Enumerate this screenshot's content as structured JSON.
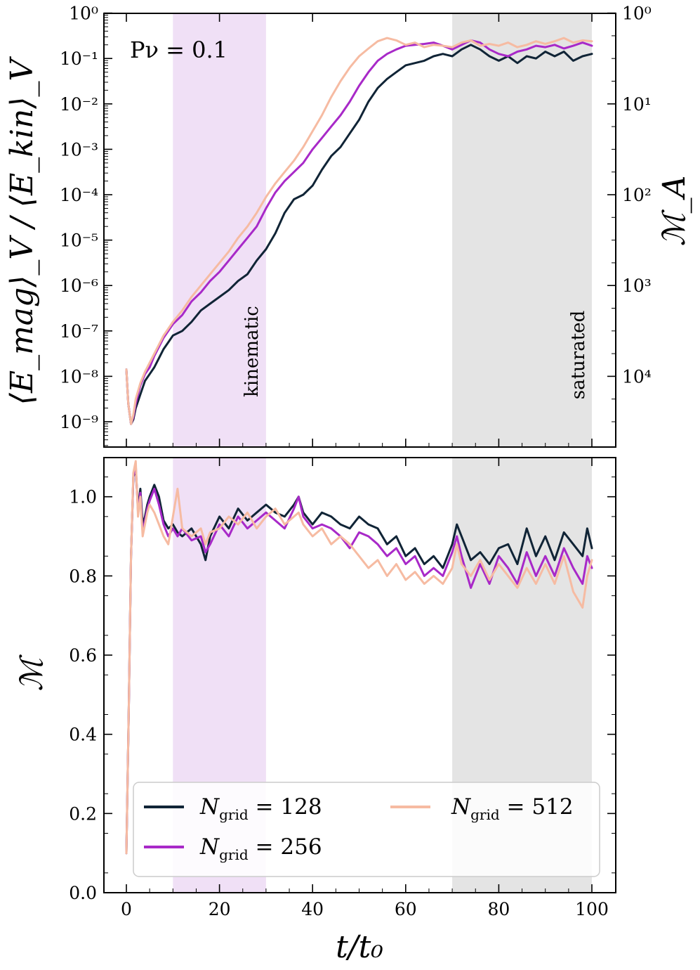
{
  "chart_data": [
    {
      "type": "line",
      "panel": "top",
      "title": "",
      "annotation": "Pν = 0.1",
      "ylabel": "⟨E_mag⟩_V / ⟨E_kin⟩_V",
      "ylabel_right": "ℳ_A",
      "yscale": "log",
      "ylim": [
        1e-10,
        1
      ],
      "xlim": [
        -5,
        105
      ],
      "y_ticks": [
        {
          "exp": -9,
          "label": "10⁻⁹"
        },
        {
          "exp": -8,
          "label": "10⁻⁸"
        },
        {
          "exp": -7,
          "label": "10⁻⁷"
        },
        {
          "exp": -6,
          "label": "10⁻⁶"
        },
        {
          "exp": -5,
          "label": "10⁻⁵"
        },
        {
          "exp": -4,
          "label": "10⁻⁴"
        },
        {
          "exp": -3,
          "label": "10⁻³"
        },
        {
          "exp": -2,
          "label": "10⁻²"
        },
        {
          "exp": -1,
          "label": "10⁻¹"
        },
        {
          "exp": 0,
          "label": "10⁰"
        }
      ],
      "y_ticks_right": [
        {
          "exp": 0,
          "label": "10⁰"
        },
        {
          "exp": -2,
          "label": "10¹"
        },
        {
          "exp": -4,
          "label": "10²"
        },
        {
          "exp": -6,
          "label": "10³"
        },
        {
          "exp": -8,
          "label": "10⁴"
        }
      ],
      "regions": [
        {
          "name": "kinematic",
          "x0": 10,
          "x1": 30,
          "color": "#f0e0f6",
          "label_color": "#b02fcc"
        },
        {
          "name": "saturated",
          "x0": 70,
          "x1": 100,
          "color": "#e4e4e4",
          "label_color": "#111111"
        }
      ],
      "series": [
        {
          "name": "128",
          "color": "#102436",
          "x": [
            0,
            0.4,
            1,
            1.5,
            2,
            3,
            4,
            5,
            6,
            7,
            8,
            9,
            10,
            12,
            14,
            16,
            18,
            20,
            22,
            24,
            26,
            28,
            30,
            32,
            34,
            36,
            38,
            40,
            42,
            44,
            46,
            48,
            50,
            52,
            54,
            56,
            58,
            60,
            62,
            64,
            66,
            68,
            70,
            72,
            74,
            76,
            78,
            80,
            82,
            84,
            86,
            88,
            90,
            92,
            94,
            96,
            98,
            100
          ],
          "y": [
            -7.85,
            -8.6,
            -9.05,
            -8.95,
            -8.7,
            -8.4,
            -8.1,
            -7.95,
            -7.8,
            -7.6,
            -7.4,
            -7.25,
            -7.1,
            -7.0,
            -6.8,
            -6.55,
            -6.4,
            -6.25,
            -6.1,
            -5.9,
            -5.75,
            -5.45,
            -5.2,
            -4.85,
            -4.4,
            -4.1,
            -4.0,
            -3.8,
            -3.45,
            -3.15,
            -2.95,
            -2.65,
            -2.35,
            -1.95,
            -1.65,
            -1.45,
            -1.3,
            -1.15,
            -1.1,
            -1.05,
            -0.95,
            -0.9,
            -0.95,
            -0.8,
            -0.7,
            -0.8,
            -0.95,
            -1.05,
            -0.95,
            -1.1,
            -0.95,
            -1.0,
            -0.85,
            -0.95,
            -0.85,
            -1.05,
            -0.95,
            -0.9
          ]
        },
        {
          "name": "256",
          "color": "#a829c8",
          "x": [
            0,
            0.4,
            1,
            1.5,
            2,
            3,
            4,
            5,
            6,
            7,
            8,
            9,
            10,
            12,
            14,
            16,
            18,
            20,
            22,
            24,
            26,
            28,
            30,
            32,
            34,
            36,
            38,
            40,
            42,
            44,
            46,
            48,
            50,
            52,
            54,
            56,
            58,
            60,
            62,
            64,
            66,
            68,
            70,
            72,
            74,
            76,
            78,
            80,
            82,
            84,
            86,
            88,
            90,
            92,
            94,
            96,
            98,
            100
          ],
          "y": [
            -7.85,
            -8.6,
            -9.05,
            -8.9,
            -8.6,
            -8.2,
            -7.95,
            -7.8,
            -7.55,
            -7.35,
            -7.15,
            -7.0,
            -6.85,
            -6.65,
            -6.35,
            -6.15,
            -5.9,
            -5.7,
            -5.45,
            -5.2,
            -4.95,
            -4.7,
            -4.3,
            -3.95,
            -3.7,
            -3.5,
            -3.3,
            -3.0,
            -2.75,
            -2.5,
            -2.25,
            -1.95,
            -1.6,
            -1.3,
            -1.05,
            -0.9,
            -0.8,
            -0.72,
            -0.7,
            -0.68,
            -0.65,
            -0.72,
            -0.8,
            -0.7,
            -0.6,
            -0.65,
            -0.8,
            -0.9,
            -0.95,
            -0.85,
            -0.8,
            -0.72,
            -0.75,
            -0.7,
            -0.78,
            -0.72,
            -0.65,
            -0.72
          ]
        },
        {
          "name": "512",
          "color": "#f6bba2",
          "x": [
            0,
            0.4,
            1,
            1.5,
            2,
            3,
            4,
            5,
            6,
            7,
            8,
            9,
            10,
            12,
            14,
            16,
            18,
            20,
            22,
            24,
            26,
            28,
            30,
            32,
            34,
            36,
            38,
            40,
            42,
            44,
            46,
            48,
            50,
            52,
            54,
            56,
            58,
            60,
            62,
            64,
            66,
            68,
            70,
            72,
            74,
            76,
            78,
            80,
            82,
            84,
            86,
            88,
            90,
            92,
            94,
            96,
            98,
            100
          ],
          "y": [
            -7.85,
            -8.6,
            -9.05,
            -8.85,
            -8.5,
            -8.15,
            -7.9,
            -7.7,
            -7.5,
            -7.3,
            -7.1,
            -6.95,
            -6.8,
            -6.55,
            -6.25,
            -6.0,
            -5.75,
            -5.5,
            -5.25,
            -4.95,
            -4.7,
            -4.4,
            -4.05,
            -3.75,
            -3.5,
            -3.25,
            -2.95,
            -2.6,
            -2.25,
            -1.85,
            -1.5,
            -1.2,
            -0.95,
            -0.78,
            -0.62,
            -0.55,
            -0.6,
            -0.7,
            -0.65,
            -0.75,
            -0.7,
            -0.72,
            -0.75,
            -0.65,
            -0.6,
            -0.72,
            -0.68,
            -0.72,
            -0.65,
            -0.75,
            -0.7,
            -0.62,
            -0.68,
            -0.62,
            -0.55,
            -0.65,
            -0.6,
            -0.62
          ]
        }
      ]
    },
    {
      "type": "line",
      "panel": "bottom",
      "ylabel": "ℳ",
      "xlabel": "t/t₀",
      "ylim": [
        0,
        1.1
      ],
      "xlim": [
        -5,
        105
      ],
      "y_ticks": [
        {
          "value": 0.0,
          "label": "0.0"
        },
        {
          "value": 0.2,
          "label": "0.2"
        },
        {
          "value": 0.4,
          "label": "0.4"
        },
        {
          "value": 0.6,
          "label": "0.6"
        },
        {
          "value": 0.8,
          "label": "0.8"
        },
        {
          "value": 1.0,
          "label": "1.0"
        }
      ],
      "x_ticks": [
        {
          "value": 0,
          "label": "0"
        },
        {
          "value": 20,
          "label": "20"
        },
        {
          "value": 40,
          "label": "40"
        },
        {
          "value": 60,
          "label": "60"
        },
        {
          "value": 80,
          "label": "80"
        },
        {
          "value": 100,
          "label": "100"
        }
      ],
      "regions": [
        {
          "name": "kinematic",
          "x0": 10,
          "x1": 30,
          "color": "#f0e0f6"
        },
        {
          "name": "saturated",
          "x0": 70,
          "x1": 100,
          "color": "#e4e4e4"
        }
      ],
      "series": [
        {
          "name": "128",
          "color": "#102436",
          "x": [
            0,
            0.5,
            1,
            1.5,
            2,
            2.5,
            3,
            3.5,
            4,
            4.5,
            5,
            6,
            7,
            8,
            9,
            10,
            11,
            12,
            14,
            16,
            17,
            18,
            20,
            22,
            24,
            26,
            28,
            30,
            32,
            34,
            36,
            37,
            38,
            40,
            42,
            44,
            46,
            48,
            50,
            52,
            54,
            56,
            58,
            60,
            62,
            64,
            66,
            68,
            70,
            71,
            72,
            74,
            76,
            78,
            80,
            82,
            84,
            86,
            88,
            90,
            92,
            94,
            96,
            98,
            99,
            100
          ],
          "y": [
            0.1,
            0.45,
            0.85,
            1.05,
            1.07,
            0.97,
            1.02,
            0.93,
            0.95,
            0.98,
            1.0,
            1.03,
            1.0,
            0.94,
            0.92,
            0.93,
            0.91,
            0.9,
            0.92,
            0.88,
            0.84,
            0.9,
            0.95,
            0.92,
            0.97,
            0.94,
            0.96,
            0.98,
            0.96,
            0.95,
            0.98,
            1.0,
            0.96,
            0.93,
            0.96,
            0.95,
            0.93,
            0.92,
            0.95,
            0.93,
            0.92,
            0.88,
            0.9,
            0.85,
            0.87,
            0.83,
            0.85,
            0.82,
            0.88,
            0.93,
            0.9,
            0.84,
            0.86,
            0.83,
            0.87,
            0.88,
            0.83,
            0.92,
            0.85,
            0.9,
            0.84,
            0.91,
            0.88,
            0.85,
            0.92,
            0.87
          ]
        },
        {
          "name": "256",
          "color": "#a829c8",
          "x": [
            0,
            0.5,
            1,
            1.5,
            2,
            2.5,
            3,
            3.5,
            4,
            4.5,
            5,
            6,
            7,
            8,
            9,
            10,
            11,
            12,
            14,
            16,
            17,
            18,
            20,
            22,
            24,
            26,
            28,
            30,
            32,
            34,
            36,
            37,
            38,
            40,
            42,
            44,
            46,
            48,
            50,
            52,
            54,
            56,
            58,
            60,
            62,
            64,
            66,
            68,
            70,
            71,
            72,
            74,
            76,
            78,
            80,
            82,
            84,
            86,
            88,
            90,
            92,
            94,
            96,
            98,
            99,
            100
          ],
          "y": [
            0.1,
            0.45,
            0.85,
            1.05,
            1.08,
            0.96,
            1.01,
            0.91,
            0.94,
            0.97,
            0.99,
            1.02,
            0.98,
            0.93,
            0.9,
            0.92,
            0.9,
            0.92,
            0.89,
            0.9,
            0.86,
            0.88,
            0.93,
            0.9,
            0.95,
            0.92,
            0.94,
            0.96,
            0.94,
            0.92,
            0.97,
            1.0,
            0.95,
            0.92,
            0.93,
            0.92,
            0.9,
            0.87,
            0.91,
            0.9,
            0.88,
            0.85,
            0.87,
            0.83,
            0.85,
            0.8,
            0.82,
            0.8,
            0.86,
            0.9,
            0.85,
            0.77,
            0.83,
            0.78,
            0.85,
            0.82,
            0.78,
            0.86,
            0.8,
            0.85,
            0.8,
            0.87,
            0.82,
            0.78,
            0.85,
            0.82
          ]
        },
        {
          "name": "512",
          "color": "#f6bba2",
          "x": [
            0,
            0.5,
            1,
            1.5,
            2,
            2.5,
            3,
            3.5,
            4,
            4.5,
            5,
            6,
            7,
            8,
            9,
            10,
            11,
            12,
            14,
            16,
            17,
            18,
            20,
            22,
            24,
            26,
            28,
            30,
            32,
            34,
            36,
            37,
            38,
            40,
            42,
            44,
            46,
            48,
            50,
            52,
            54,
            56,
            58,
            60,
            62,
            64,
            66,
            68,
            70,
            71,
            72,
            74,
            76,
            78,
            80,
            82,
            84,
            86,
            88,
            90,
            92,
            94,
            96,
            98,
            99,
            100
          ],
          "y": [
            0.1,
            0.45,
            0.85,
            1.06,
            1.09,
            0.95,
            1.0,
            0.9,
            0.93,
            0.96,
            0.98,
            0.96,
            0.93,
            0.9,
            0.88,
            0.95,
            1.02,
            0.92,
            0.9,
            0.92,
            0.88,
            0.91,
            0.92,
            0.95,
            0.93,
            0.96,
            0.92,
            0.95,
            0.97,
            0.93,
            0.95,
            0.96,
            0.93,
            0.9,
            0.92,
            0.88,
            0.9,
            0.88,
            0.85,
            0.82,
            0.84,
            0.8,
            0.83,
            0.79,
            0.81,
            0.78,
            0.8,
            0.78,
            0.82,
            0.88,
            0.83,
            0.8,
            0.84,
            0.79,
            0.83,
            0.8,
            0.77,
            0.82,
            0.78,
            0.83,
            0.78,
            0.85,
            0.76,
            0.72,
            0.8,
            0.84
          ]
        }
      ]
    }
  ],
  "legend": {
    "position": "bottom-center",
    "entries": [
      {
        "name": "128",
        "var": "N",
        "sub": "grid",
        "eq": " = 128",
        "color": "#102436"
      },
      {
        "name": "256",
        "var": "N",
        "sub": "grid",
        "eq": " = 256",
        "color": "#a829c8"
      },
      {
        "name": "512",
        "var": "N",
        "sub": "grid",
        "eq": " = 512",
        "color": "#f6bba2"
      }
    ]
  }
}
